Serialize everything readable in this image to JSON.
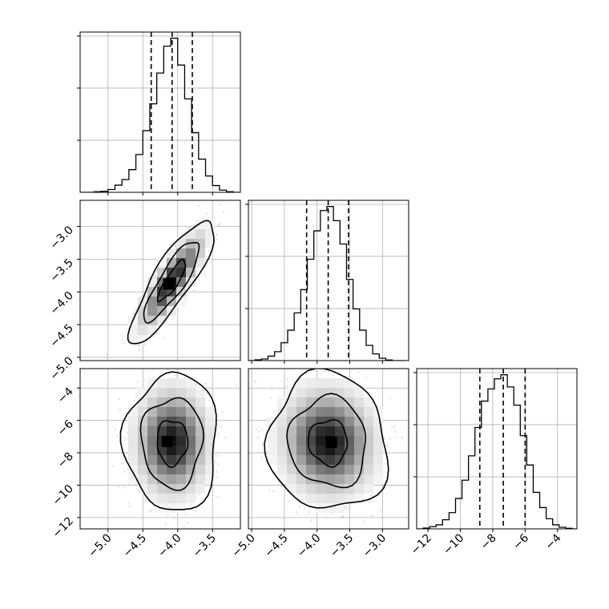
{
  "figure": {
    "background": "#ffffff",
    "frame_color": "#000000",
    "grid_color": "#b0b0b0",
    "scatter_color": "#9a9a9a",
    "histogram_color": "#000000"
  },
  "chart_data": {
    "type": "corner",
    "grid": true,
    "variables": [
      {
        "index": 0,
        "range": [
          -5.4,
          -3.1
        ],
        "ticks": [
          -5.0,
          -4.5,
          -4.0,
          -3.5
        ],
        "tick_labels": [
          "−5.0",
          "−4.5",
          "−4.0",
          "−3.5"
        ],
        "quantiles": [
          -4.38,
          -4.08,
          -3.79
        ]
      },
      {
        "index": 1,
        "range": [
          -5.05,
          -2.6
        ],
        "ticks": [
          -5.0,
          -4.5,
          -4.0,
          -3.5,
          -3.0
        ],
        "tick_labels": [
          "−5.0",
          "−4.5",
          "−4.0",
          "−3.5",
          "−3.0"
        ],
        "quantiles": [
          -4.16,
          -3.83,
          -3.52
        ]
      },
      {
        "index": 2,
        "range": [
          -12.7,
          -2.8
        ],
        "ticks": [
          -12,
          -10,
          -8,
          -6,
          -4
        ],
        "tick_labels": [
          "−12",
          "−10",
          "−8",
          "−6",
          "−4"
        ],
        "quantiles": [
          -8.8,
          -7.35,
          -6.0
        ]
      }
    ],
    "histograms": [
      {
        "variable": 0,
        "bin_edges": [
          -5.4,
          -5.3,
          -5.2,
          -5.1,
          -5.0,
          -4.9,
          -4.8,
          -4.7,
          -4.6,
          -4.5,
          -4.4,
          -4.3,
          -4.2,
          -4.1,
          -4.0,
          -3.9,
          -3.8,
          -3.7,
          -3.6,
          -3.5,
          -3.4,
          -3.3,
          -3.2,
          -3.1
        ],
        "counts": [
          0,
          0,
          3,
          5,
          14,
          36,
          64,
          114,
          190,
          310,
          445,
          600,
          735,
          775,
          640,
          470,
          300,
          167,
          82,
          34,
          11,
          3,
          0
        ]
      },
      {
        "variable": 1,
        "bin_edges": [
          -5.05,
          -4.95,
          -4.85,
          -4.75,
          -4.65,
          -4.55,
          -4.45,
          -4.35,
          -4.25,
          -4.15,
          -4.05,
          -3.95,
          -3.85,
          -3.75,
          -3.65,
          -3.55,
          -3.45,
          -3.35,
          -3.25,
          -3.15,
          -3.05,
          -2.95,
          -2.85,
          -2.75,
          -2.65
        ],
        "counts": [
          0,
          4,
          8,
          22,
          44,
          88,
          150,
          235,
          350,
          500,
          640,
          740,
          760,
          690,
          575,
          400,
          255,
          150,
          75,
          33,
          12,
          3,
          0,
          0
        ]
      },
      {
        "variable": 2,
        "bin_edges": [
          -12.7,
          -12.3,
          -11.9,
          -11.5,
          -11.1,
          -10.7,
          -10.3,
          -9.9,
          -9.5,
          -9.1,
          -8.7,
          -8.3,
          -7.9,
          -7.5,
          -7.1,
          -6.7,
          -6.3,
          -5.9,
          -5.5,
          -5.1,
          -4.7,
          -4.3,
          -3.9,
          -3.5,
          -3.1,
          -2.8
        ],
        "counts": [
          0,
          4,
          11,
          20,
          45,
          80,
          150,
          240,
          360,
          500,
          630,
          690,
          740,
          760,
          700,
          610,
          460,
          315,
          180,
          105,
          50,
          20,
          8,
          3,
          0
        ]
      }
    ],
    "pairs": [
      {
        "x": 0,
        "y": 1,
        "x_mean": -4.08,
        "y_mean": -3.83,
        "x_std": 0.2,
        "y_std": 0.31,
        "correlation": 0.85,
        "peak": [
          -4.13,
          -3.88
        ],
        "n_points": 1800
      },
      {
        "x": 0,
        "y": 2,
        "x_mean": -4.08,
        "y_mean": -7.35,
        "x_std": 0.22,
        "y_std": 1.4,
        "correlation": 0.0,
        "peak": [
          -4.15,
          -7.3
        ],
        "n_points": 1800
      },
      {
        "x": 1,
        "y": 2,
        "x_mean": -3.83,
        "y_mean": -7.35,
        "x_std": 0.3,
        "y_std": 1.4,
        "correlation": -0.05,
        "peak": [
          -3.78,
          -7.35
        ],
        "n_points": 1800
      }
    ],
    "contour_levels": [
      0.39,
      0.86,
      0.99
    ]
  }
}
